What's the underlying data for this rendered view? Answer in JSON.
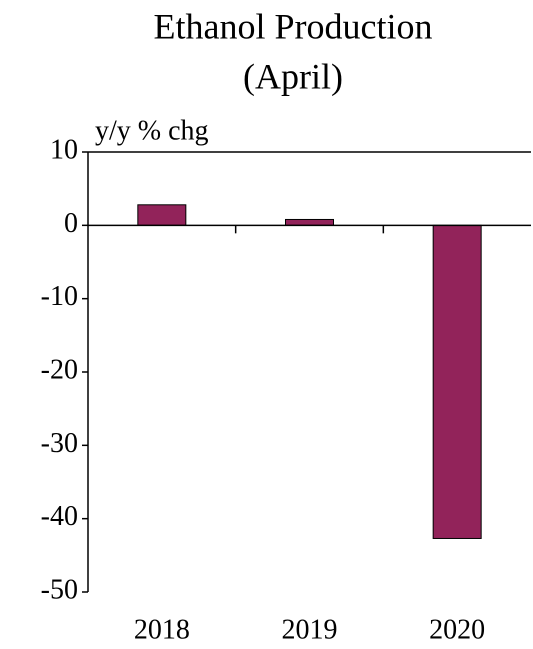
{
  "chart_data": {
    "type": "bar",
    "title": "Ethanol Production",
    "subtitle": "(April)",
    "y_label": "y/y % chg",
    "categories": [
      "2018",
      "2019",
      "2020"
    ],
    "values": [
      2.8,
      0.8,
      -42.7
    ],
    "color": "#92235a",
    "ylim": [
      -50,
      10
    ],
    "yticks": [
      -50,
      -40,
      -30,
      -20,
      -10,
      0,
      10
    ],
    "grid": false
  }
}
